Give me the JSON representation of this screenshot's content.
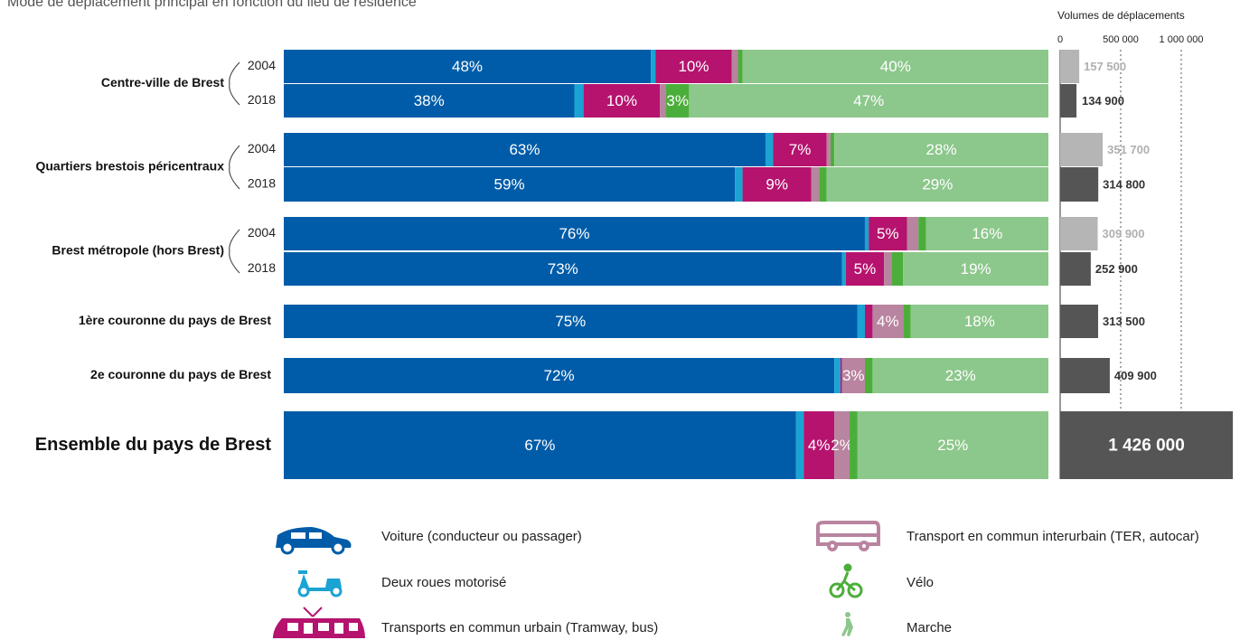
{
  "chart_data": {
    "type": "stacked-bar",
    "title": "Mode de déplacement principal en fonction du lieu de résidence",
    "groups": [
      {
        "name": "Centre-ville de Brest",
        "categories": [
          "2004",
          "2018"
        ]
      },
      {
        "name": "Quartiers brestois péricentraux",
        "categories": [
          "2004",
          "2018"
        ]
      },
      {
        "name": "Brest métropole (hors Brest)",
        "categories": [
          "2004",
          "2018"
        ]
      },
      {
        "name": "1ère couronne du pays de Brest",
        "categories": [
          null
        ]
      },
      {
        "name": "2e couronne du pays de Brest",
        "categories": [
          null
        ]
      },
      {
        "name": "Ensemble du pays de Brest",
        "categories": [
          null
        ]
      }
    ],
    "xlim": [
      0,
      100
    ],
    "series": [
      {
        "name": "Voiture (conducteur ou passager)",
        "color": "#005ca8",
        "values": [
          48,
          38,
          63,
          59,
          76,
          73,
          75,
          72,
          67
        ],
        "value_labels": [
          "48%",
          "38%",
          "63%",
          "59%",
          "76%",
          "73%",
          "75%",
          "72%",
          "67%"
        ]
      },
      {
        "name": "Deux roues motorisé",
        "color": "#1ba3d3",
        "values": [
          0.6,
          1.2,
          1.0,
          1,
          0.5,
          0.5,
          1,
          0.8,
          1
        ],
        "value_labels": [
          null,
          null,
          null,
          null,
          null,
          null,
          null,
          null,
          null
        ]
      },
      {
        "name": "Transports en commun urbain (Tramway, bus)",
        "color": "#b5136e",
        "values": [
          10,
          10,
          7,
          9,
          5,
          5,
          1,
          0.2,
          4
        ],
        "value_labels": [
          "10%",
          "10%",
          "7%",
          "9%",
          "5%",
          "5%",
          null,
          null,
          "4%"
        ]
      },
      {
        "name": "Transport en commun interurbain (TER, autocar)",
        "color": "#b8849f",
        "values": [
          0.8,
          0.8,
          0.5,
          1,
          1.5,
          1,
          4,
          3,
          2
        ],
        "value_labels": [
          null,
          null,
          null,
          null,
          null,
          null,
          "4%",
          "3%",
          "2%"
        ]
      },
      {
        "name": "Vélo",
        "color": "#4cae3a",
        "values": [
          0.6,
          3,
          0.5,
          1,
          1,
          1.5,
          1,
          1,
          1
        ],
        "value_labels": [
          null,
          "3%",
          null,
          null,
          null,
          null,
          null,
          null,
          null
        ]
      },
      {
        "name": "Marche",
        "color": "#8cc78b",
        "values": [
          40,
          47,
          28,
          29,
          16,
          19,
          18,
          23,
          25
        ],
        "value_labels": [
          "40%",
          "47%",
          "28%",
          "29%",
          "16%",
          "19%",
          "18%",
          "23%",
          "25%"
        ]
      }
    ],
    "volumes": {
      "title": "Volumes de déplacements",
      "xlim": [
        0,
        1426000
      ],
      "xticks": [
        0,
        {
          "value": 500000,
          "label": "500 000"
        },
        {
          "value": 1000000,
          "label": "1 000 000"
        }
      ],
      "values": [
        157500,
        134900,
        351700,
        314800,
        309900,
        252900,
        313500,
        409900,
        1426000
      ],
      "value_labels": [
        "157 500",
        "134 900",
        "351 700",
        "314 800",
        "309 900",
        "252 900",
        "313 500",
        "409 900",
        "1 426 000"
      ],
      "colors": [
        "#b5b5b5",
        "#555555",
        "#b5b5b5",
        "#555555",
        "#b5b5b5",
        "#555555",
        "#555555",
        "#555555",
        "#555555"
      ]
    }
  }
}
